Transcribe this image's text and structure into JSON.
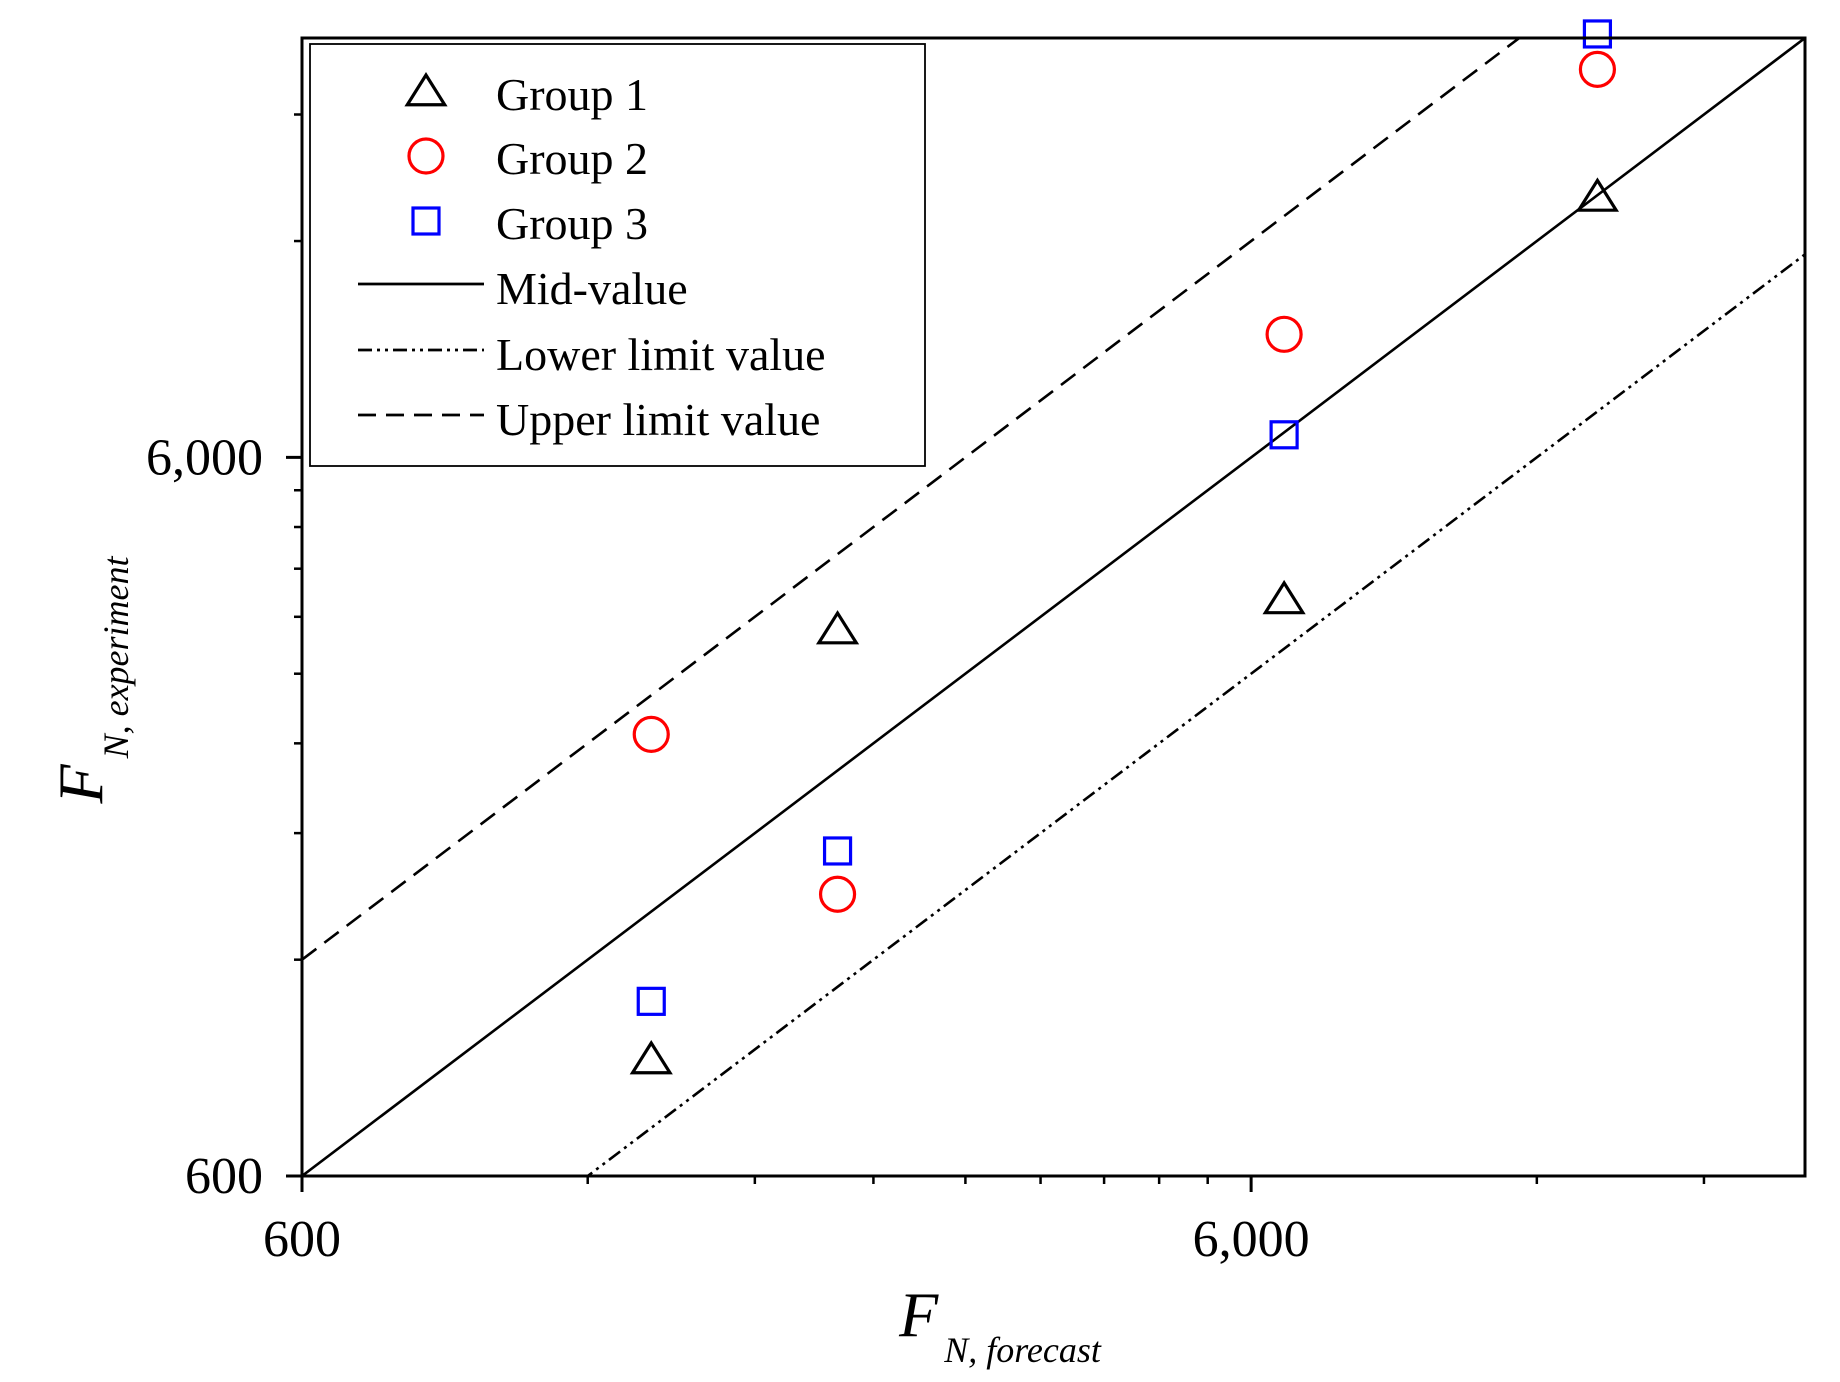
{
  "chart_data": {
    "type": "scatter",
    "title": "",
    "xscale": "log",
    "yscale": "log",
    "xlim": [
      600,
      23000
    ],
    "ylim": [
      600,
      23000
    ],
    "xlabel": {
      "main": "F",
      "sub": "N,  forecast"
    },
    "ylabel": {
      "main": "F",
      "sub": "N,  experiment"
    },
    "xticks": [
      {
        "value": 600,
        "label": "600"
      },
      {
        "value": 6000,
        "label": "6,000"
      }
    ],
    "yticks": [
      {
        "value": 600,
        "label": "600"
      },
      {
        "value": 6000,
        "label": "6,000"
      }
    ],
    "series": [
      {
        "name": "Group 1",
        "marker": "triangle",
        "color": "#000000",
        "points": [
          [
            1400,
            870
          ],
          [
            2200,
            3450
          ],
          [
            6500,
            3800
          ],
          [
            13900,
            13800
          ]
        ]
      },
      {
        "name": "Group 2",
        "marker": "circle",
        "color": "#ff0000",
        "points": [
          [
            1400,
            2470
          ],
          [
            2200,
            1480
          ],
          [
            6500,
            8900
          ],
          [
            13900,
            20800
          ]
        ]
      },
      {
        "name": "Group 3",
        "marker": "square",
        "color": "#0000ff",
        "points": [
          [
            1400,
            1050
          ],
          [
            2200,
            1700
          ],
          [
            6500,
            6450
          ],
          [
            13900,
            23300
          ]
        ]
      }
    ],
    "lines": [
      {
        "name": "Mid-value",
        "style": "solid",
        "color": "#000000",
        "ratio": 1.0
      },
      {
        "name": "Lower limit value",
        "style": "dashdotdot",
        "color": "#000000",
        "ratio": 0.5
      },
      {
        "name": "Upper limit value",
        "style": "dashed",
        "color": "#000000",
        "ratio": 2.0
      }
    ],
    "legend": {
      "position": "top-left"
    }
  }
}
